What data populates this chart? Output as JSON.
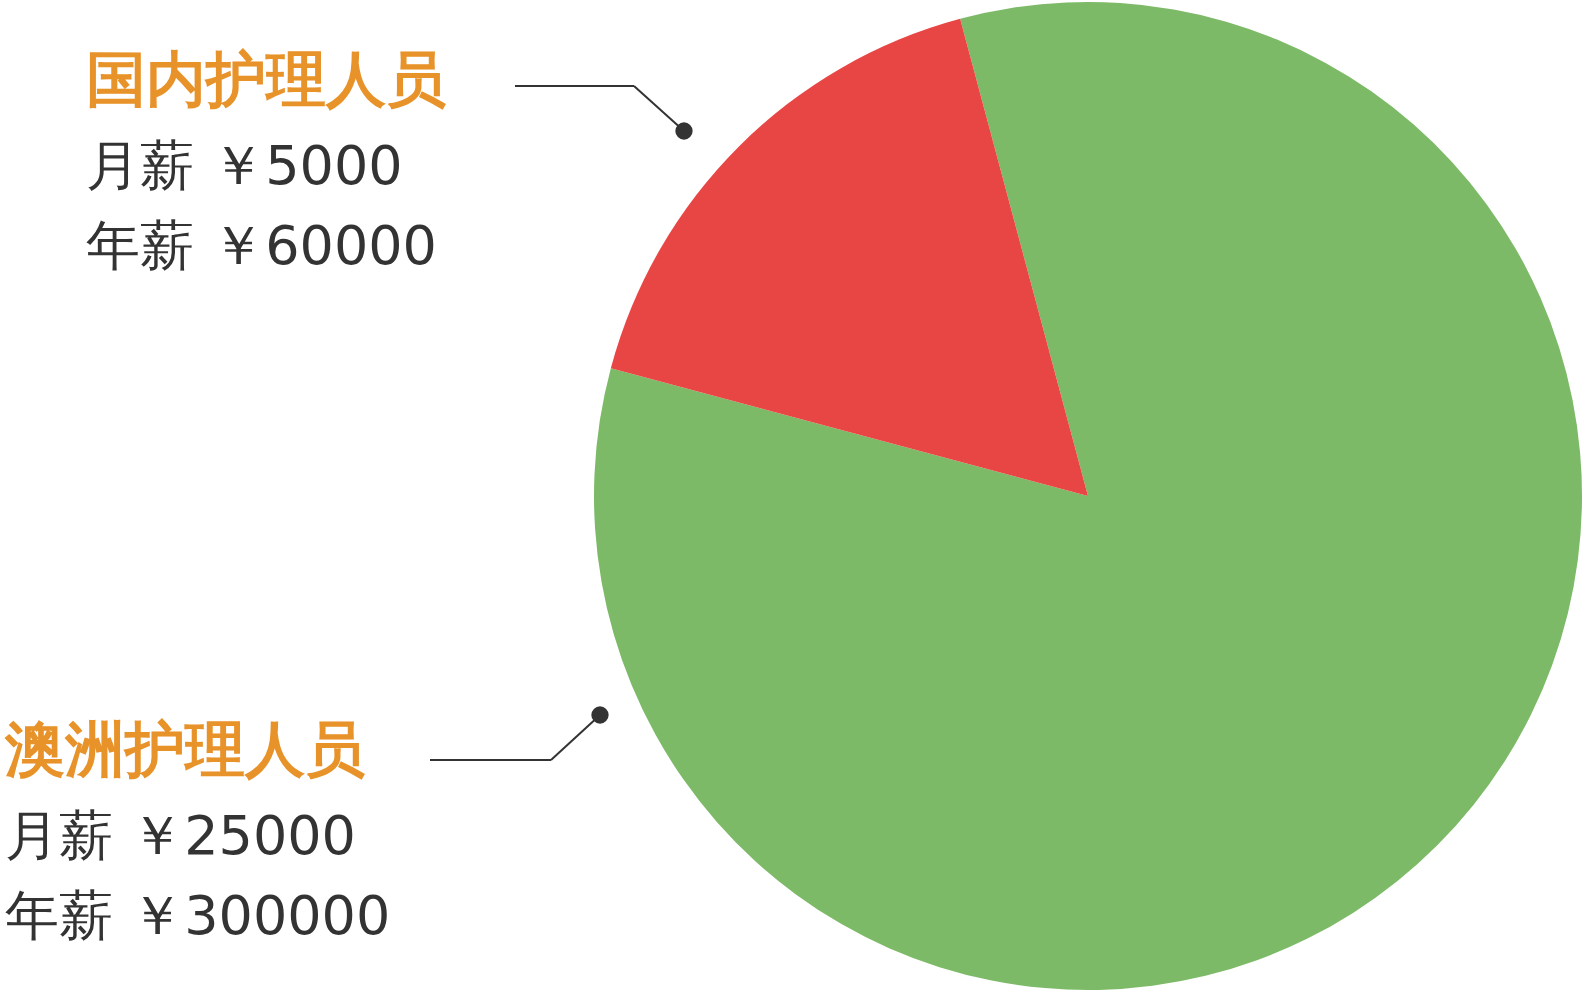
{
  "chart_data": {
    "type": "pie",
    "categories": [
      "澳洲护理人员",
      "国内护理人员"
    ],
    "values": [
      25000,
      5000
    ],
    "colors": [
      "#7dba67",
      "#e84644"
    ],
    "value_labels": [
      "月薪 ￥25000",
      "月薪 ￥5000"
    ],
    "annotations": [
      "年薪 ￥300000",
      "年薪 ￥60000"
    ],
    "legend": false
  }
}
